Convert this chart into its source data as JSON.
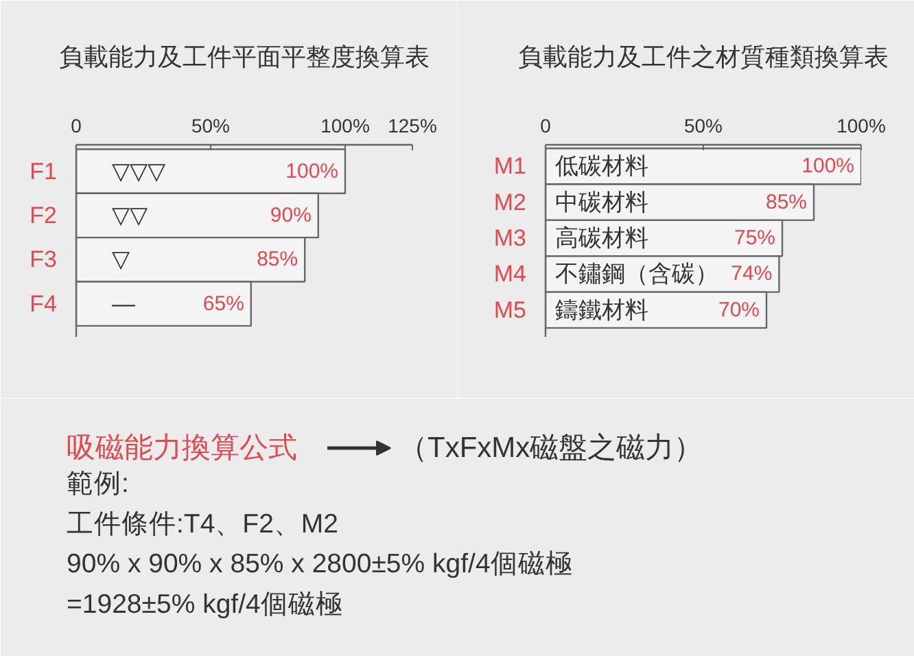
{
  "chart_data": [
    {
      "type": "bar",
      "orientation": "horizontal",
      "title": "負載能力及工件平面平整度換算表",
      "categories": [
        "F1",
        "F2",
        "F3",
        "F4"
      ],
      "values": [
        100,
        90,
        85,
        65
      ],
      "color": "#f4f4f4",
      "value_labels": [
        "100%",
        "90%",
        "85%",
        "65%"
      ],
      "xlim": [
        0,
        125
      ],
      "xticks": [
        0,
        {
          "value": 50,
          "label": "50%"
        },
        {
          "value": 100,
          "label": "100%"
        },
        {
          "value": 125,
          "label": "125%"
        }
      ],
      "annotations": [
        "▽▽▽",
        "▽▽",
        "▽",
        "—"
      ]
    },
    {
      "type": "bar",
      "orientation": "horizontal",
      "title": "負載能力及工件之材質種類換算表",
      "categories": [
        "M1",
        "M2",
        "M3",
        "M4",
        "M5"
      ],
      "values": [
        100,
        85,
        75,
        74,
        70
      ],
      "color": "#f4f4f4",
      "value_labels": [
        "100%",
        "85%",
        "75%",
        "74%",
        "70%"
      ],
      "xlim": [
        0,
        100
      ],
      "xticks": [
        0,
        {
          "value": 50,
          "label": "50%"
        },
        {
          "value": 100,
          "label": "100%"
        }
      ],
      "annotations": [
        "低碳材料",
        "中碳材料",
        "高碳材料",
        "不鏽鋼（含碳）",
        "鑄鐵材料"
      ]
    },
    {
      "type": "other",
      "title": "吸磁能力換算公式",
      "annotations": [
        "（TxFxMx磁盤之磁力）",
        "範例:",
        "工件條件:T4、F2、M2",
        "90% x 90% x 85% x 2800±5% kgf/4個磁極",
        "=1928±5% kgf/4個磁極"
      ]
    }
  ]
}
